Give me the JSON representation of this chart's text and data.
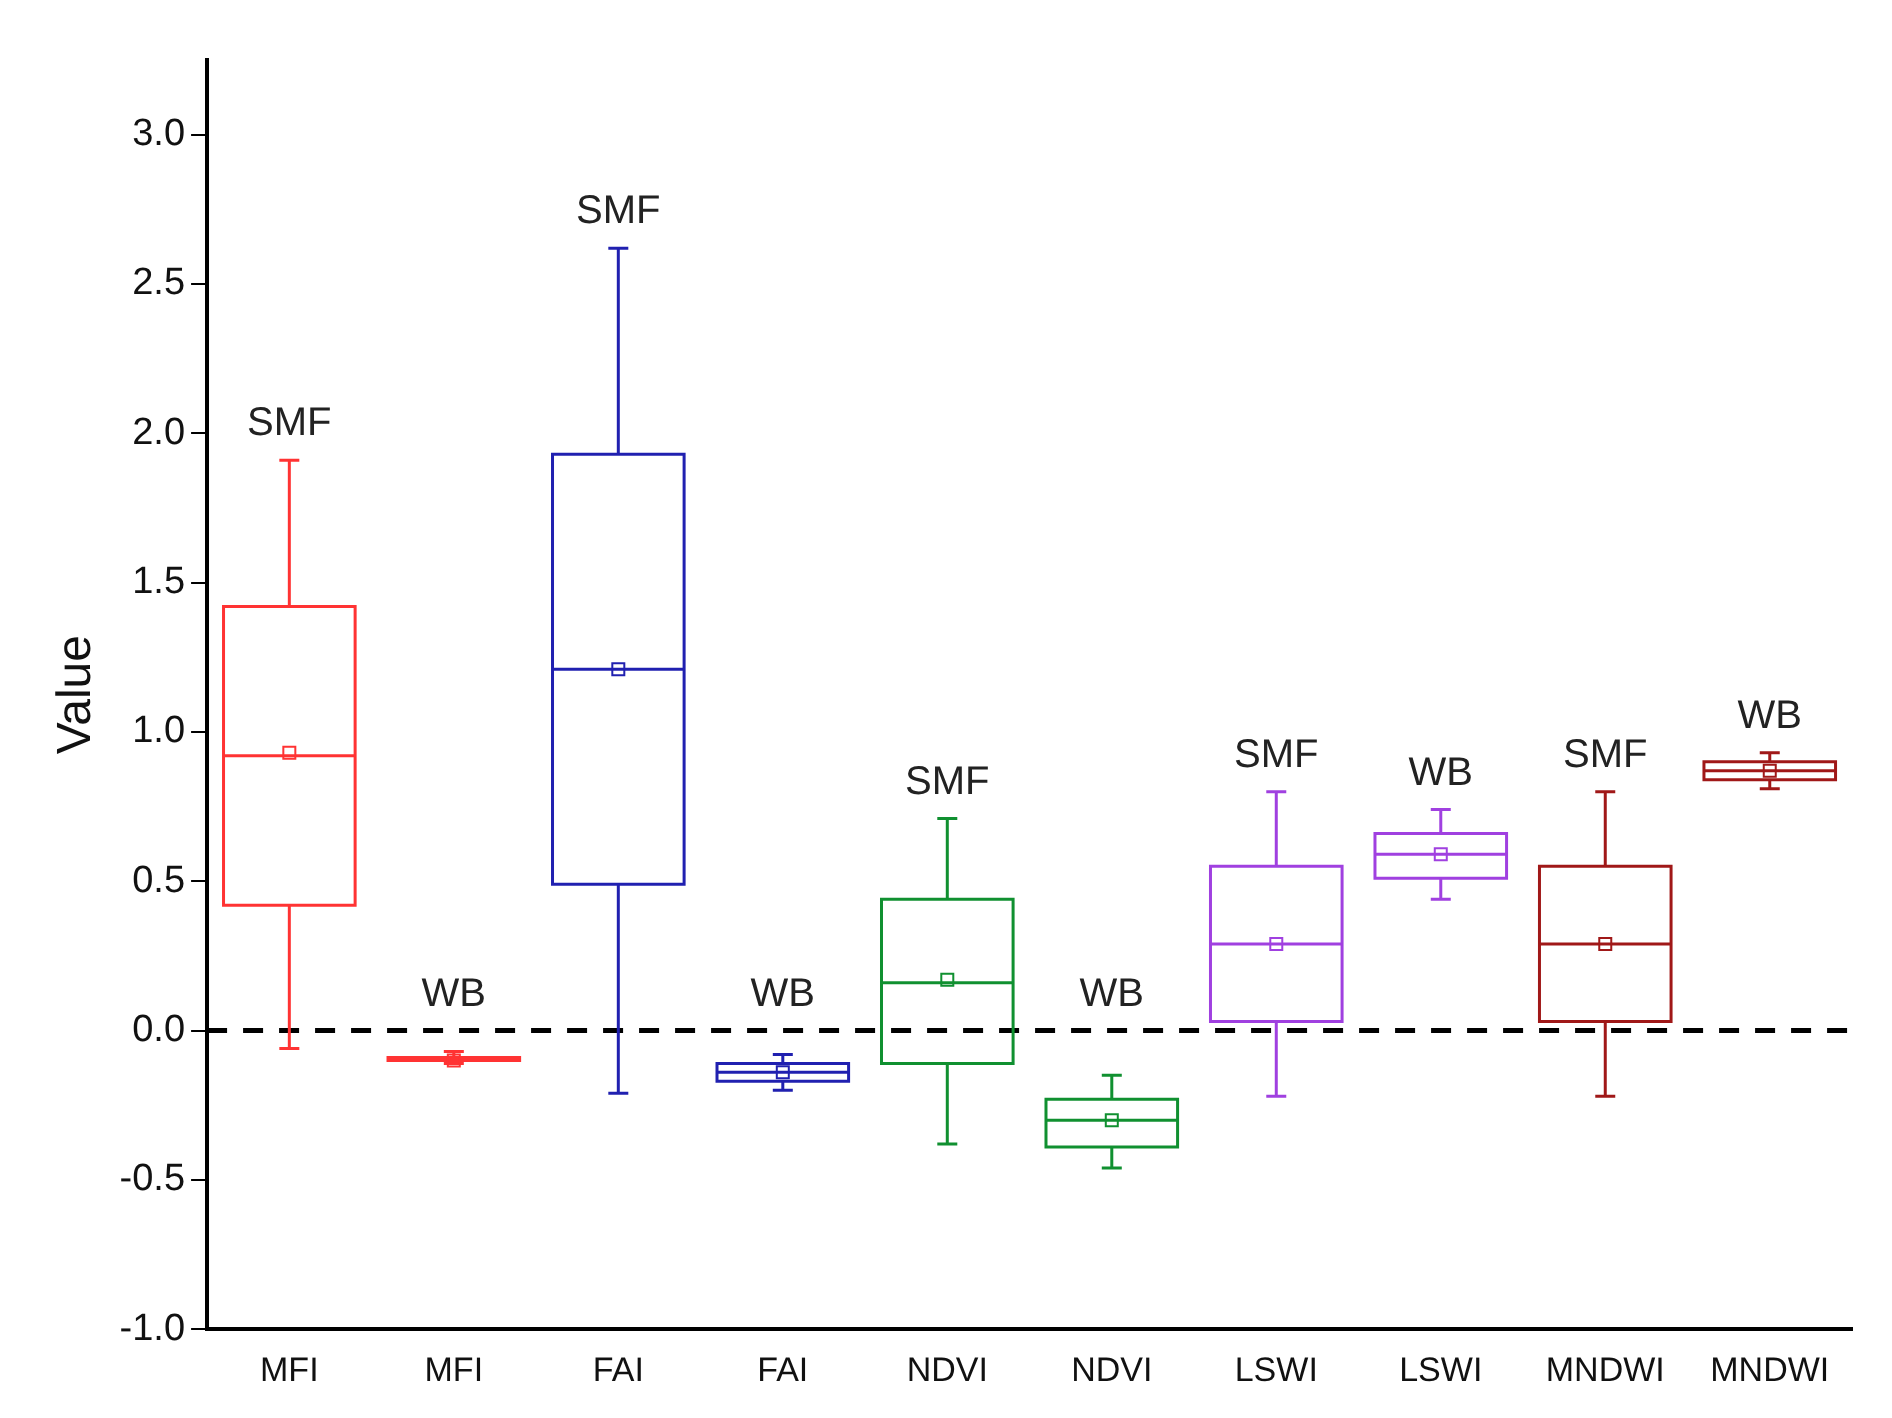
{
  "chart_data": {
    "type": "box",
    "ylabel": "Value",
    "categories": [
      "MFI",
      "MFI",
      "FAI",
      "FAI",
      "NDVI",
      "NDVI",
      "LSWI",
      "LSWI",
      "MNDWI",
      "MNDWI"
    ],
    "ylim": [
      -1,
      3.25
    ],
    "yticks": [
      {
        "value": -1,
        "label": "-1.0"
      },
      {
        "value": -0.5,
        "label": "-0.5"
      },
      {
        "value": 0,
        "label": "0.0"
      },
      {
        "value": 0.5,
        "label": "0.5"
      },
      {
        "value": 1,
        "label": "1.0"
      },
      {
        "value": 1.5,
        "label": "1.5"
      },
      {
        "value": 2,
        "label": "2.0"
      },
      {
        "value": 2.5,
        "label": "2.5"
      },
      {
        "value": 3,
        "label": "3.0"
      }
    ],
    "grid": false,
    "legend": false,
    "series": [
      {
        "name": "SMF",
        "colors": [
          "#ff3333",
          null,
          "#2020b0",
          null,
          "#109030",
          null,
          "#a040e0",
          null,
          "#a01818",
          null
        ],
        "boxes": [
          {
            "low": -0.06,
            "q1": 0.42,
            "median": 0.92,
            "q3": 1.42,
            "high": 1.91,
            "mean": 0.93
          },
          null,
          {
            "low": -0.21,
            "q1": 0.49,
            "median": 1.21,
            "q3": 1.93,
            "high": 2.62,
            "mean": 1.21
          },
          null,
          {
            "low": -0.38,
            "q1": -0.11,
            "median": 0.16,
            "q3": 0.44,
            "high": 0.71,
            "mean": 0.17
          },
          null,
          {
            "low": -0.22,
            "q1": 0.03,
            "median": 0.29,
            "q3": 0.55,
            "high": 0.8,
            "mean": 0.29
          },
          null,
          {
            "low": -0.22,
            "q1": 0.03,
            "median": 0.29,
            "q3": 0.55,
            "high": 0.8,
            "mean": 0.29
          },
          null
        ]
      },
      {
        "name": "WB",
        "colors": [
          null,
          "#ff3333",
          null,
          "#2020b0",
          null,
          "#109030",
          null,
          "#a040e0",
          null,
          "#a01818"
        ],
        "boxes": [
          null,
          {
            "low": -0.11,
            "q1": -0.1,
            "median": -0.1,
            "q3": -0.09,
            "high": -0.07,
            "mean": -0.1
          },
          null,
          {
            "low": -0.2,
            "q1": -0.17,
            "median": -0.14,
            "q3": -0.11,
            "high": -0.08,
            "mean": -0.14
          },
          null,
          {
            "low": -0.46,
            "q1": -0.39,
            "median": -0.3,
            "q3": -0.23,
            "high": -0.15,
            "mean": -0.3
          },
          null,
          {
            "low": 0.44,
            "q1": 0.51,
            "median": 0.59,
            "q3": 0.66,
            "high": 0.74,
            "mean": 0.59
          },
          null,
          {
            "low": 0.81,
            "q1": 0.84,
            "median": 0.87,
            "q3": 0.9,
            "high": 0.93,
            "mean": 0.87
          }
        ]
      }
    ],
    "ref_lines": [
      {
        "axis": "y",
        "value": 0,
        "color": "#000000",
        "line_style": "dashed"
      }
    ]
  }
}
